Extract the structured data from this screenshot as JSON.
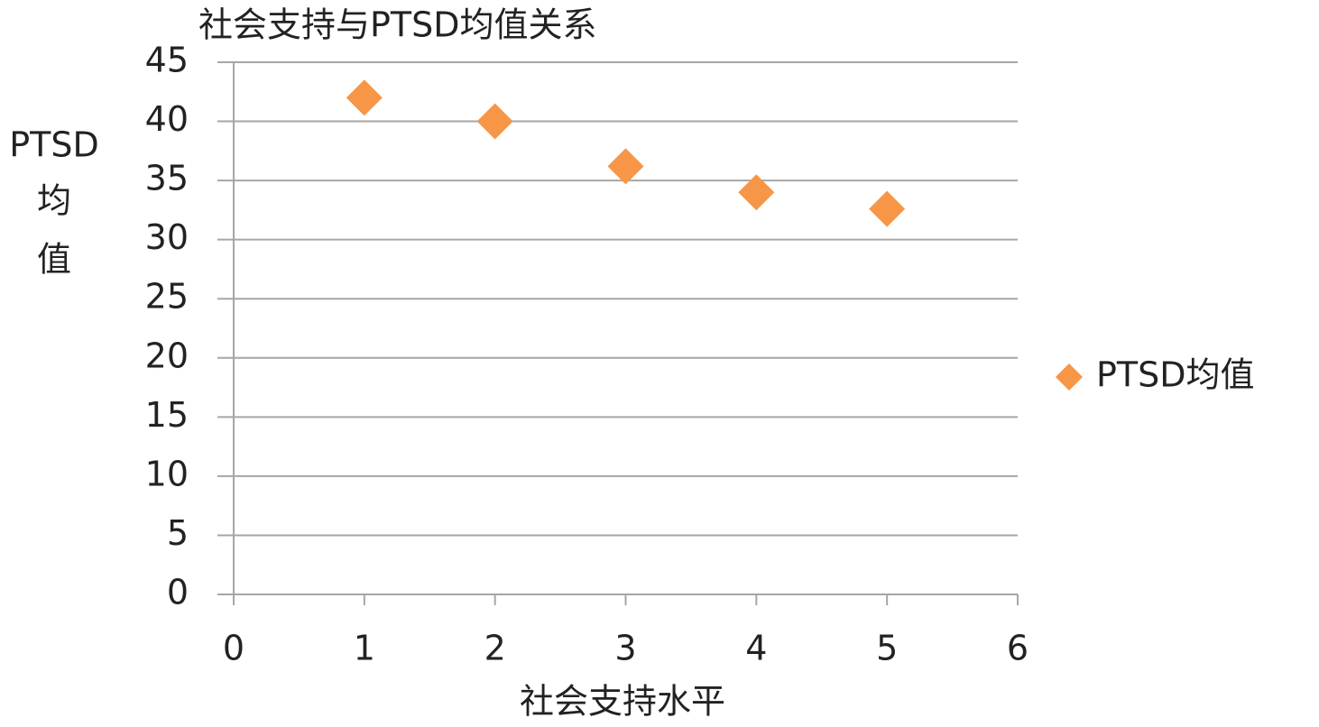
{
  "chart_data": {
    "type": "scatter",
    "title": "社会支持与PTSD均值关系",
    "x_label": "社会支持水平",
    "y_label": [
      "PTSD",
      "均",
      "值"
    ],
    "series": [
      {
        "name": "PTSD均值",
        "color": "#f79646",
        "x": [
          1,
          2,
          3,
          4,
          5
        ],
        "values": [
          42,
          40,
          36.2,
          34,
          32.6
        ]
      }
    ],
    "xlim": [
      0,
      6
    ],
    "xticks": [
      0,
      1,
      2,
      3,
      4,
      5,
      6
    ],
    "ylim": [
      0,
      45
    ],
    "yticks": [
      0,
      5,
      10,
      15,
      20,
      25,
      30,
      35,
      40,
      45
    ],
    "grid": true,
    "legend": "right"
  }
}
